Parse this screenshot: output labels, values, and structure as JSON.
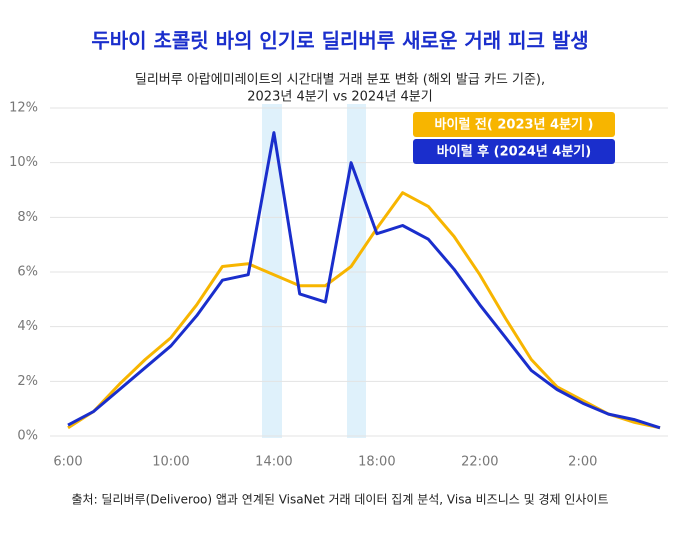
{
  "chart_data": {
    "type": "line",
    "title": "두바이 초콜릿 바의 인기로 딜리버루 새로운 거래 피크 발생",
    "subtitle": [
      "딜리버루 아랍에미레이트의 시간대별 거래 분포 변화 (해외 발급 카드 기준),",
      "2023년 4분기 vs 2024년 4분기"
    ],
    "source": "출처: 딜리버루(Deliveroo) 앱과 연계된 VisaNet 거래 데이터 집계 분석, Visa 비즈니스 및 경제 인사이트",
    "categories": [
      "6:00",
      null,
      null,
      null,
      "10:00",
      null,
      null,
      null,
      "14:00",
      null,
      null,
      null,
      "18:00",
      null,
      null,
      null,
      "22:00",
      null,
      null,
      null,
      "2:00",
      null,
      null,
      null
    ],
    "series": [
      {
        "name": "바이럴 전( 2023년 4분기 )",
        "color": "#f7b500",
        "values": [
          0.3,
          0.9,
          1.9,
          2.8,
          3.6,
          4.8,
          6.2,
          6.3,
          5.9,
          5.5,
          5.5,
          6.2,
          7.6,
          8.9,
          8.4,
          7.3,
          5.9,
          4.3,
          2.8,
          1.8,
          1.3,
          0.8,
          0.5,
          0.3
        ]
      },
      {
        "name": "바이럴 후 (2024년 4분기)",
        "color": "#1a2ecc",
        "values": [
          0.4,
          0.9,
          1.7,
          2.5,
          3.3,
          4.4,
          5.7,
          5.9,
          11.1,
          5.2,
          4.9,
          10.0,
          7.4,
          7.7,
          7.2,
          6.1,
          4.8,
          3.6,
          2.4,
          1.7,
          1.2,
          0.8,
          0.6,
          0.3
        ]
      }
    ],
    "ylim": [
      0,
      12
    ],
    "yticks": [
      {
        "value": 0,
        "label": "0%"
      },
      {
        "value": 2,
        "label": "2%"
      },
      {
        "value": 4,
        "label": "4%"
      },
      {
        "value": 6,
        "label": "6%"
      },
      {
        "value": 8,
        "label": "8%"
      },
      {
        "value": 10,
        "label": "10%"
      },
      {
        "value": 12,
        "label": "12%"
      }
    ],
    "grid": true
  }
}
